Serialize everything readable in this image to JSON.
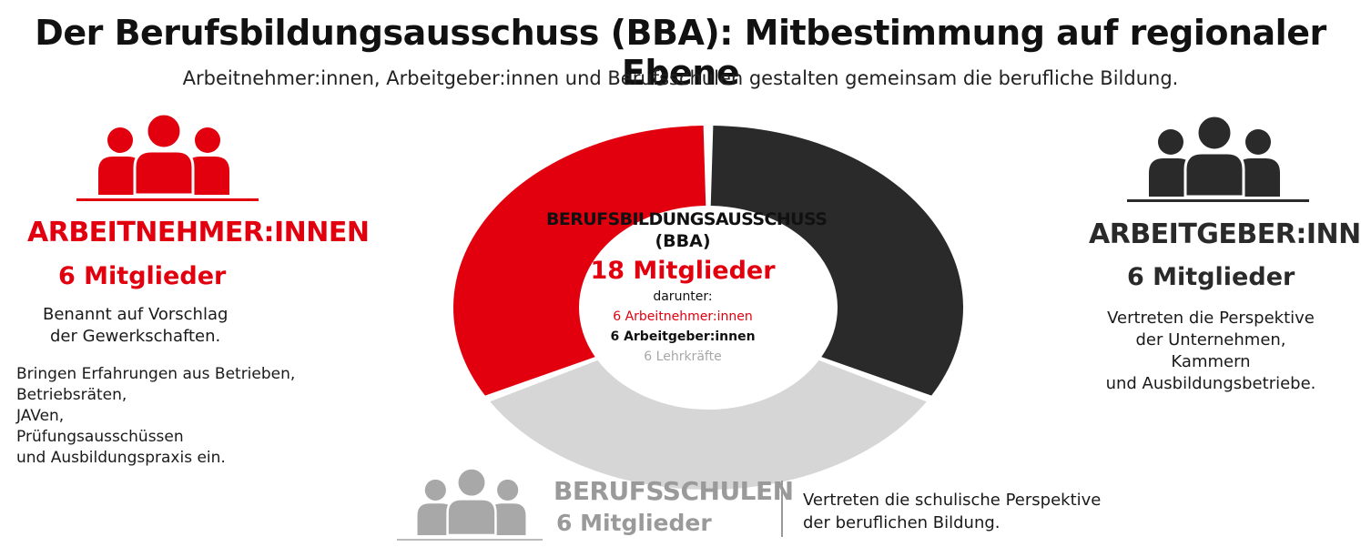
{
  "header": {
    "title": "Der Berufsbildungsausschuss (BBA): Mitbestimmung auf regionaler Ebene",
    "subtitle": "Arbeitnehmer:innen, Arbeitgeber:innen und Berufsschulen gestalten gemeinsam die berufliche Bildung."
  },
  "colors": {
    "employees": "#e2000f",
    "employers": "#2a2a2a",
    "schools": "#d6d6d6",
    "schools_text": "#9a9a9a"
  },
  "chart_data": {
    "type": "pie",
    "categories": [
      "Arbeitnehmer:innen",
      "Arbeitgeber:innen",
      "Berufsschulen"
    ],
    "values": [
      6,
      6,
      6
    ]
  },
  "center": {
    "heading": "BERUFSBILDUNGSAUSSCHUSS",
    "abbreviation": "(BBA)",
    "members": "18 Mitglieder",
    "list_label": "darunter:",
    "list": [
      "6 Arbeitnehmer:innen",
      "6 Arbeitgeber:innen",
      "6 Lehrkräfte"
    ]
  },
  "left": {
    "icon": "group-icon",
    "heading": "ARBEITNEHMER:INNEN",
    "members": "6 Mitglieder",
    "description": [
      "Benannt auf Vorschlag",
      "der Gewerkschaften."
    ],
    "details": [
      "Bringen Erfahrungen aus Betrieben,",
      "Betriebsräten,",
      "JAVen,",
      "Prüfungsausschüssen",
      "und Ausbildungspraxis ein."
    ]
  },
  "right": {
    "icon": "group-icon",
    "heading": "ARBEITGEBER:INNEN",
    "members": "6 Mitglieder",
    "description": [
      "Vertreten die Perspektive",
      "der Unternehmen,",
      "Kammern",
      "und Ausbildungsbetriebe."
    ]
  },
  "bottom": {
    "icon": "group-icon",
    "heading": "BERUFSSCHULEN",
    "members": "6 Mitglieder",
    "description": [
      "Vertreten die schulische Perspektive",
      "der beruflichen Bildung."
    ]
  }
}
